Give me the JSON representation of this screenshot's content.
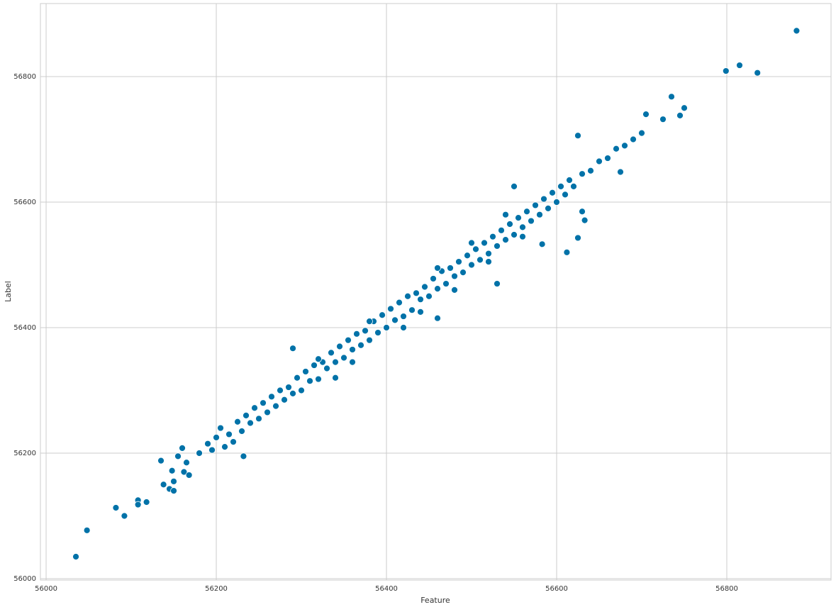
{
  "chart_data": {
    "type": "scatter",
    "xlabel": "Feature",
    "ylabel": "Label",
    "color": "#0072a8",
    "grid": true,
    "xlim": [
      55993.3,
      56922.5
    ],
    "ylim": [
      55997.7,
      56916.4
    ],
    "xticks": [
      56000,
      56200,
      56400,
      56600,
      56800
    ],
    "yticks": [
      56000,
      56200,
      56400,
      56600,
      56800
    ],
    "x": [
      56035,
      56048,
      56082,
      56092,
      56108,
      56108,
      56118,
      56135,
      56138,
      56145,
      56150,
      56148,
      56150,
      56155,
      56160,
      56162,
      56165,
      56168,
      56799,
      56815,
      56836,
      56882,
      56735,
      56750,
      56745,
      56725,
      56705,
      56625,
      56612,
      56625,
      56630,
      56633,
      56583,
      56675,
      56530,
      56460,
      56232,
      56290,
      56180,
      56190,
      56195,
      56200,
      56205,
      56210,
      56215,
      56220,
      56225,
      56230,
      56235,
      56240,
      56245,
      56250,
      56255,
      56260,
      56265,
      56270,
      56275,
      56280,
      56285,
      56290,
      56295,
      56300,
      56305,
      56310,
      56315,
      56320,
      56325,
      56330,
      56335,
      56340,
      56345,
      56350,
      56355,
      56360,
      56365,
      56370,
      56375,
      56380,
      56385,
      56390,
      56395,
      56400,
      56405,
      56410,
      56415,
      56420,
      56425,
      56430,
      56435,
      56440,
      56445,
      56450,
      56455,
      56460,
      56465,
      56470,
      56475,
      56480,
      56485,
      56490,
      56495,
      56500,
      56505,
      56510,
      56515,
      56520,
      56525,
      56530,
      56535,
      56540,
      56545,
      56550,
      56555,
      56560,
      56565,
      56570,
      56575,
      56580,
      56585,
      56590,
      56595,
      56600,
      56605,
      56610,
      56615,
      56620,
      56630,
      56640,
      56650,
      56660,
      56670,
      56680,
      56690,
      56700,
      56340,
      56360,
      56420,
      56440,
      56480,
      56520,
      56560,
      56320,
      56380,
      56460,
      56500,
      56540,
      56550
    ],
    "values": [
      56035,
      56077,
      56113,
      56100,
      56125,
      56118,
      56122,
      56188,
      56150,
      56143,
      56140,
      56172,
      56155,
      56195,
      56208,
      56170,
      56185,
      56165,
      56809,
      56818,
      56806,
      56873,
      56768,
      56750,
      56738,
      56732,
      56740,
      56706,
      56520,
      56543,
      56585,
      56571,
      56533,
      56648,
      56470,
      56415,
      56195,
      56367,
      56200,
      56215,
      56205,
      56225,
      56240,
      56210,
      56230,
      56218,
      56250,
      56235,
      56260,
      56248,
      56272,
      56255,
      56280,
      56265,
      56290,
      56275,
      56300,
      56285,
      56305,
      56295,
      56320,
      56300,
      56330,
      56315,
      56340,
      56318,
      56345,
      56335,
      56360,
      56345,
      56370,
      56352,
      56380,
      56365,
      56390,
      56372,
      56395,
      56380,
      56410,
      56392,
      56420,
      56400,
      56430,
      56412,
      56440,
      56418,
      56450,
      56428,
      56455,
      56445,
      56465,
      56450,
      56478,
      56462,
      56490,
      56470,
      56495,
      56482,
      56505,
      56488,
      56515,
      56500,
      56525,
      56508,
      56535,
      56518,
      56545,
      56530,
      56555,
      56540,
      56565,
      56548,
      56575,
      56560,
      56585,
      56570,
      56595,
      56580,
      56605,
      56590,
      56615,
      56600,
      56625,
      56612,
      56635,
      56625,
      56645,
      56650,
      56665,
      56670,
      56685,
      56690,
      56700,
      56710,
      56320,
      56345,
      56400,
      56425,
      56460,
      56505,
      56545,
      56350,
      56410,
      56495,
      56535,
      56580,
      56625
    ]
  }
}
